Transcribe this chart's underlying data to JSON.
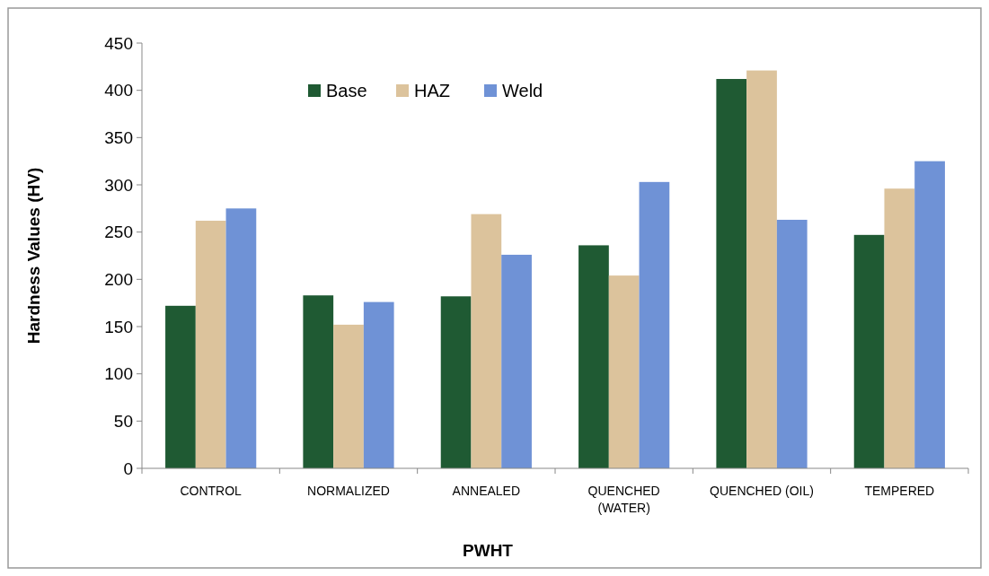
{
  "chart_data": {
    "type": "bar",
    "xlabel": "PWHT",
    "ylabel": "Hardness Values (HV)",
    "categories": [
      "CONTROL",
      "NORMALIZED",
      "ANNEALED",
      "QUENCHED (WATER)",
      "QUENCHED (OIL)",
      "TEMPERED"
    ],
    "series": [
      {
        "name": "Base",
        "color": "#1f5a33",
        "values": [
          172,
          183,
          182,
          236,
          412,
          247
        ]
      },
      {
        "name": "HAZ",
        "color": "#dcc39c",
        "values": [
          262,
          152,
          269,
          204,
          421,
          296
        ]
      },
      {
        "name": "Weld",
        "color": "#6f92d6",
        "values": [
          275,
          176,
          226,
          303,
          263,
          325
        ]
      }
    ],
    "ylim": [
      0,
      450
    ],
    "yticks": [
      0,
      50,
      100,
      150,
      200,
      250,
      300,
      350,
      400,
      450
    ],
    "grid": false,
    "legend": "top"
  }
}
